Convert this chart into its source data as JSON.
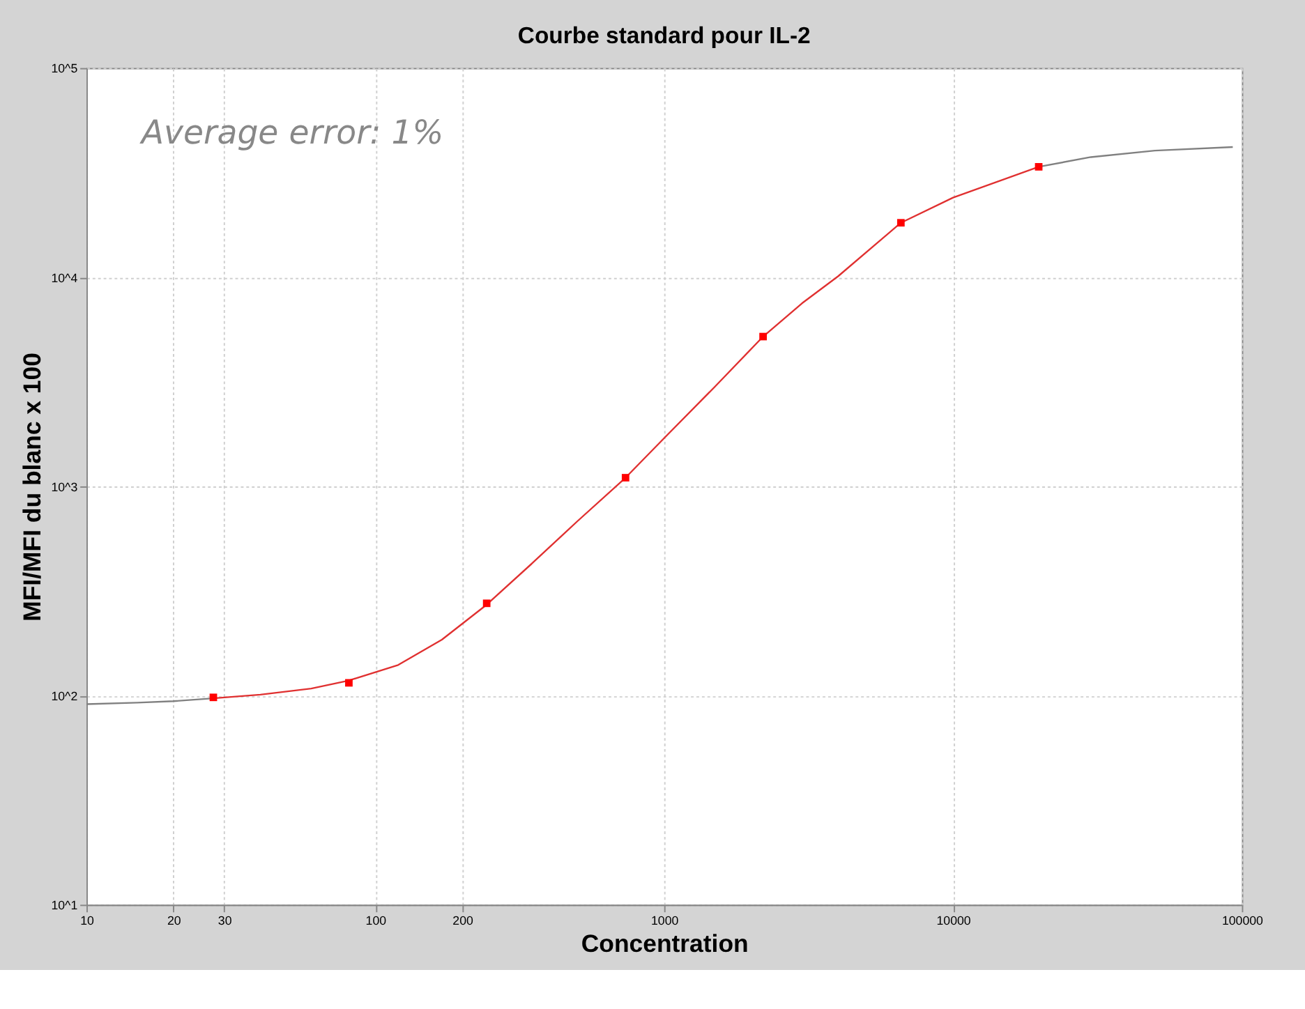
{
  "chart_data": {
    "type": "scatter",
    "title": "Courbe standard pour IL-2",
    "xlabel": "Concentration",
    "ylabel": "MFI/MFI du blanc x 100",
    "annotations": [
      "Average error: 1%"
    ],
    "log": "xy",
    "grid": true,
    "xlim": [
      10,
      100000
    ],
    "xticks": [
      10,
      20,
      30,
      100,
      200,
      1000,
      10000,
      100000
    ],
    "ylim": [
      10,
      100000
    ],
    "yticks": [
      {
        "value": 10,
        "label": "10^1"
      },
      {
        "value": 100,
        "label": "10^2"
      },
      {
        "value": 1000,
        "label": "10^3"
      },
      {
        "value": 10000,
        "label": "10^4"
      },
      {
        "value": 100000,
        "label": "10^5"
      }
    ],
    "series": [
      {
        "type": "line",
        "color": "#808080",
        "marker": "none",
        "x": [
          10,
          15,
          20,
          27.5
        ],
        "values": [
          91,
          92.5,
          94,
          97
        ]
      },
      {
        "type": "line",
        "color": "#e03030",
        "marker": "none",
        "x": [
          27.5,
          40,
          60,
          81,
          120,
          170,
          243,
          350,
          500,
          735,
          1000,
          1500,
          2200,
          3000,
          4000,
          6600,
          10000,
          19800
        ],
        "values": [
          97,
          101,
          108,
          118,
          140,
          185,
          272,
          430,
          680,
          1100,
          1700,
          3000,
          5200,
          7500,
          10100,
          18200,
          24000,
          33700
        ]
      },
      {
        "type": "line",
        "color": "#808080",
        "marker": "none",
        "x": [
          19800,
          30000,
          50000,
          93000
        ],
        "values": [
          33700,
          37500,
          40300,
          41900
        ]
      },
      {
        "color": "#ff0000",
        "marker": "square",
        "x": [
          27.5,
          81,
          243,
          735,
          2200,
          6600,
          19800
        ],
        "values": [
          98,
          115,
          276,
          1100,
          5200,
          18200,
          33700
        ]
      }
    ]
  }
}
